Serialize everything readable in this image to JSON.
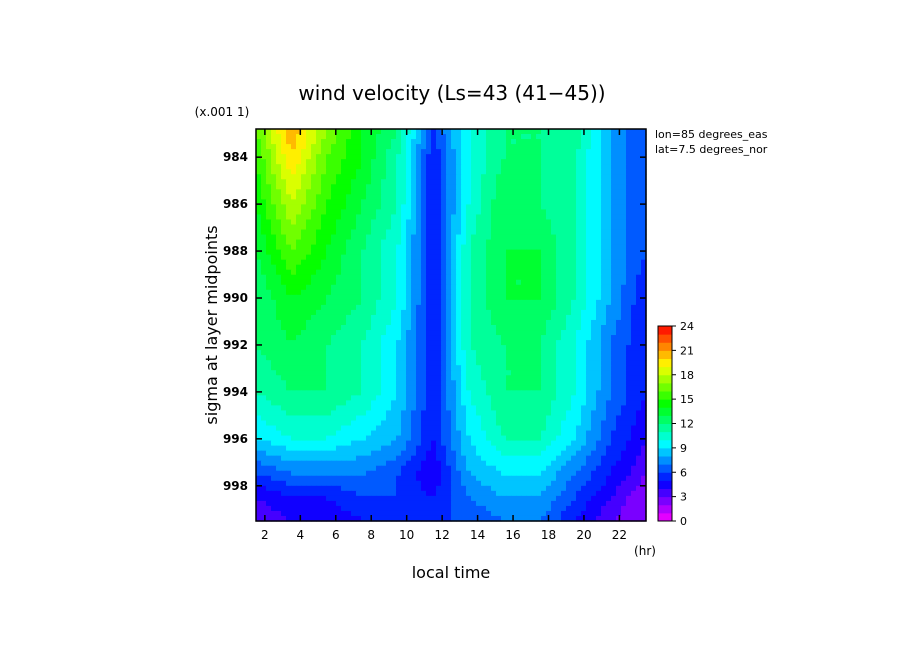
{
  "chart_data": {
    "type": "heatmap",
    "title": "wind velocity (Ls=43 (41−45))",
    "xlabel": "local time",
    "x_unit": "(hr)",
    "ylabel": "sigma at layer midpoints",
    "y_scale_label": "(x.001 1)",
    "annotations": [
      "lon=85 degrees_eas",
      "lat=7.5 degrees_nor"
    ],
    "xlim": [
      1.5,
      23.5
    ],
    "ylim": [
      999.5,
      982.8
    ],
    "x_ticks": [
      2,
      4,
      6,
      8,
      10,
      12,
      14,
      16,
      18,
      20,
      22
    ],
    "y_ticks": [
      984,
      986,
      988,
      990,
      992,
      994,
      996,
      998
    ],
    "x": [
      1.5,
      3.5,
      5.5,
      7.5,
      9.5,
      11.5,
      13.5,
      15.5,
      17.5,
      19.5,
      21.5,
      23.5
    ],
    "y": [
      982.8,
      984,
      986,
      988,
      990,
      992,
      994,
      996,
      997.5,
      998.5,
      999.5
    ],
    "z": [
      [
        16,
        21,
        17,
        14,
        12,
        6,
        10,
        12,
        12,
        12,
        8,
        6
      ],
      [
        15,
        20,
        16,
        14,
        11,
        5,
        10,
        12,
        12,
        11,
        8,
        6
      ],
      [
        14,
        18,
        15,
        13,
        11,
        5,
        10,
        13,
        12,
        11,
        8,
        6
      ],
      [
        13,
        16,
        14,
        12,
        10,
        5,
        11,
        13,
        13,
        11,
        8,
        6
      ],
      [
        12,
        14,
        13,
        12,
        10,
        5,
        11,
        13,
        13,
        11,
        8,
        5
      ],
      [
        12,
        13,
        12,
        11,
        9,
        5,
        11,
        12,
        12,
        10,
        7,
        5
      ],
      [
        11,
        12,
        12,
        11,
        9,
        5,
        10,
        12,
        12,
        10,
        7,
        5
      ],
      [
        9,
        10,
        10,
        9,
        8,
        5,
        9,
        11,
        11,
        9,
        6,
        4
      ],
      [
        6,
        7,
        7,
        7,
        6,
        4,
        8,
        9,
        9,
        7,
        5,
        3
      ],
      [
        4,
        5,
        5,
        6,
        6,
        5,
        7,
        8,
        8,
        6,
        4,
        2
      ],
      [
        3,
        4,
        4,
        5,
        6,
        6,
        6,
        7,
        7,
        5,
        3,
        2
      ]
    ],
    "colorbar": {
      "min": 0,
      "max": 24,
      "step": 1,
      "tick_values": [
        0,
        3,
        6,
        9,
        12,
        15,
        18,
        21,
        24
      ]
    }
  }
}
